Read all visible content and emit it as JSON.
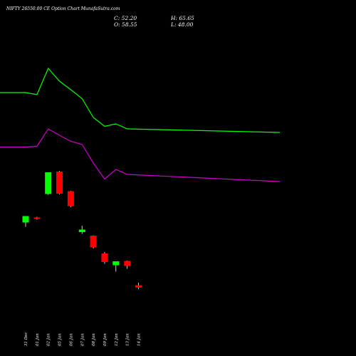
{
  "header": {
    "title": "NIFTY 26550.00 CE Option Chart MunafaSutra.com",
    "close": "C: 52.20",
    "open": "O: 58.55",
    "high": "H: 65.65",
    "low": "L: 48.00"
  },
  "colors": {
    "background": "#000000",
    "bullish": "#00ff00",
    "bearish": "#ff0000",
    "upper_band": "#00ff00",
    "lower_band": "#cc00cc",
    "text": "#ffffff"
  },
  "chart_data": {
    "type": "candlestick",
    "title": "NIFTY 26550.00 CE Option Chart MunafaSutra.com",
    "categories": [
      "31 Dec",
      "01 Jan",
      "02 Jan",
      "05 Jan",
      "06 Jan",
      "07 Jan",
      "08 Jan",
      "09 Jan",
      "12 Jan",
      "13 Jan",
      "14 Jan"
    ],
    "candles": [
      {
        "open": 235.0,
        "high": 247.0,
        "low": 223.0,
        "close": 253.0,
        "direction": "up"
      },
      {
        "open": 249.0,
        "high": 251.0,
        "low": 243.0,
        "close": 245.0,
        "direction": "down"
      },
      {
        "open": 315.0,
        "high": 372.0,
        "low": 313.0,
        "close": 376.0,
        "direction": "up"
      },
      {
        "open": 378.0,
        "high": 380.0,
        "low": 314.0,
        "close": 316.0,
        "direction": "down"
      },
      {
        "open": 323.0,
        "high": 324.0,
        "low": 278.0,
        "close": 281.0,
        "direction": "down"
      },
      {
        "open": 208.0,
        "high": 226.0,
        "low": 203.0,
        "close": 215.0,
        "direction": "up"
      },
      {
        "open": 198.0,
        "high": 199.0,
        "low": 162.0,
        "close": 165.0,
        "direction": "down"
      },
      {
        "open": 148.0,
        "high": 152.0,
        "low": 119.0,
        "close": 124.0,
        "direction": "down"
      },
      {
        "open": 115.0,
        "high": 123.0,
        "low": 97.0,
        "close": 126.0,
        "direction": "up"
      },
      {
        "open": 127.0,
        "high": 128.0,
        "low": 105.0,
        "close": 113.0,
        "direction": "down"
      },
      {
        "open": 58.55,
        "high": 65.65,
        "low": 48.0,
        "close": 52.2,
        "direction": "down"
      }
    ],
    "upper_band": [
      600,
      600,
      594,
      668,
      632,
      608,
      583,
      530,
      505,
      512,
      498,
      488
    ],
    "lower_band": [
      447,
      447,
      449,
      498,
      480,
      463,
      454,
      402,
      357,
      384,
      370,
      350
    ],
    "band_x_categories": [
      "",
      "31 Dec",
      "01 Jan",
      "02 Jan",
      "05 Jan",
      "06 Jan",
      "07 Jan",
      "08 Jan",
      "09 Jan",
      "12 Jan",
      "13 Jan",
      "14 Jan"
    ],
    "ylim": [
      0,
      760
    ],
    "grid": false,
    "legend": "none"
  }
}
